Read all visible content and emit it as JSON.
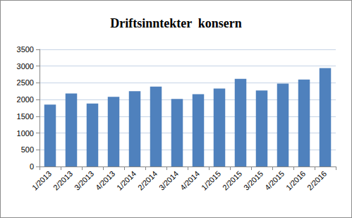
{
  "chart_data": {
    "type": "bar",
    "title": "Driftsinntekter  konsern",
    "categories": [
      "1/2013",
      "2/2013",
      "3/2013",
      "4/2013",
      "1/2014",
      "2/2014",
      "3/2014",
      "4/2014",
      "1/2015",
      "2/2015",
      "3/2015",
      "4/2015",
      "1/2016",
      "2/2016"
    ],
    "values": [
      1850,
      2180,
      1880,
      2080,
      2250,
      2390,
      2020,
      2160,
      2330,
      2620,
      2270,
      2480,
      2600,
      2940
    ],
    "color": "#4f81bd",
    "ylim": [
      0,
      3500
    ],
    "yticks": [
      0,
      500,
      1000,
      1500,
      2000,
      2500,
      3000,
      3500
    ],
    "grid": true
  }
}
